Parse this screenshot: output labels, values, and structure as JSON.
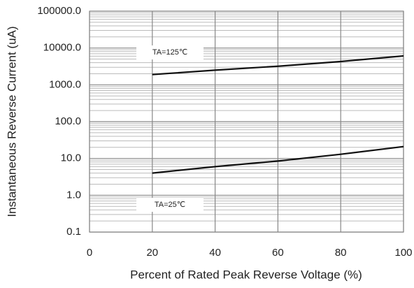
{
  "chart_data": {
    "type": "line",
    "x_label": "Percent of  Rated Peak Reverse Voltage (%)",
    "y_label": "Instantaneous Reverse Current (uA)",
    "log_y": true,
    "grid": true,
    "minor_grid": true,
    "xlim": [
      0,
      100
    ],
    "xticks": [
      0,
      20,
      40,
      60,
      80,
      100
    ],
    "ylim": [
      0.1,
      100000
    ],
    "yticks": [
      {
        "value": 0.1,
        "label": "0.1"
      },
      {
        "value": 1,
        "label": "1.0"
      },
      {
        "value": 10,
        "label": "10.0"
      },
      {
        "value": 100,
        "label": "100.0"
      },
      {
        "value": 1000,
        "label": "1000.0"
      },
      {
        "value": 10000,
        "label": "10000.0"
      },
      {
        "value": 100000,
        "label": "100000.0"
      }
    ],
    "x": [
      20,
      40,
      60,
      80,
      100
    ],
    "series": [
      {
        "name": "TA=125℃",
        "color": "#111111",
        "values": [
          1900,
          2500,
          3200,
          4300,
          6100
        ]
      },
      {
        "name": "TA=25℃",
        "color": "#111111",
        "values": [
          4,
          6,
          8.5,
          13,
          21
        ]
      }
    ]
  }
}
